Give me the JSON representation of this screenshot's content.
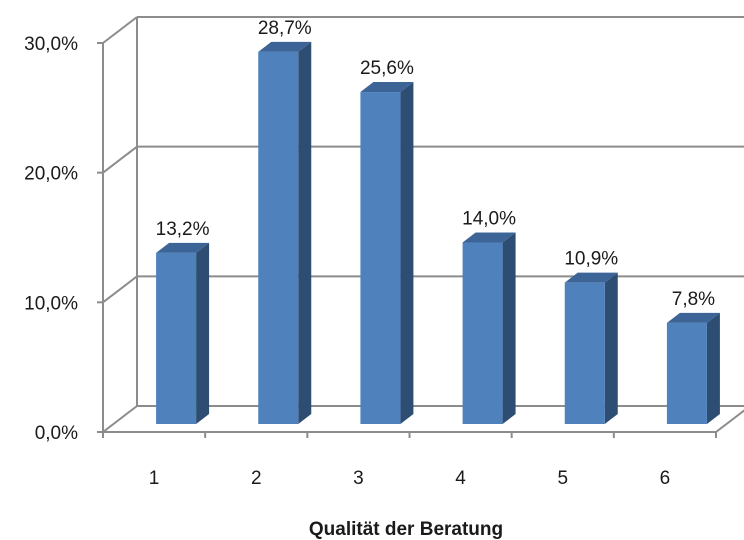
{
  "chart_data": {
    "type": "bar",
    "title": "",
    "xlabel": "Qualität der Beratung",
    "ylabel": "",
    "categories": [
      "1",
      "2",
      "3",
      "4",
      "5",
      "6"
    ],
    "values": [
      13.2,
      28.7,
      25.6,
      14.0,
      10.9,
      7.8
    ],
    "data_labels": [
      "13,2%",
      "28,7%",
      "25,6%",
      "14,0%",
      "10,9%",
      "7,8%"
    ],
    "ylim": [
      0,
      30
    ],
    "yticks": [
      0,
      10,
      20,
      30
    ],
    "ytick_labels": [
      "0,0%",
      "10,0%",
      "20,0%",
      "30,0%"
    ],
    "grid": true,
    "legend": "none",
    "three_d": true,
    "colors": {
      "bar_front": "#4F81BD",
      "bar_side": "#2E4D73",
      "bar_top": "#3C6496",
      "grid": "#8C8C8C",
      "walls": "#FFFFFF"
    }
  }
}
